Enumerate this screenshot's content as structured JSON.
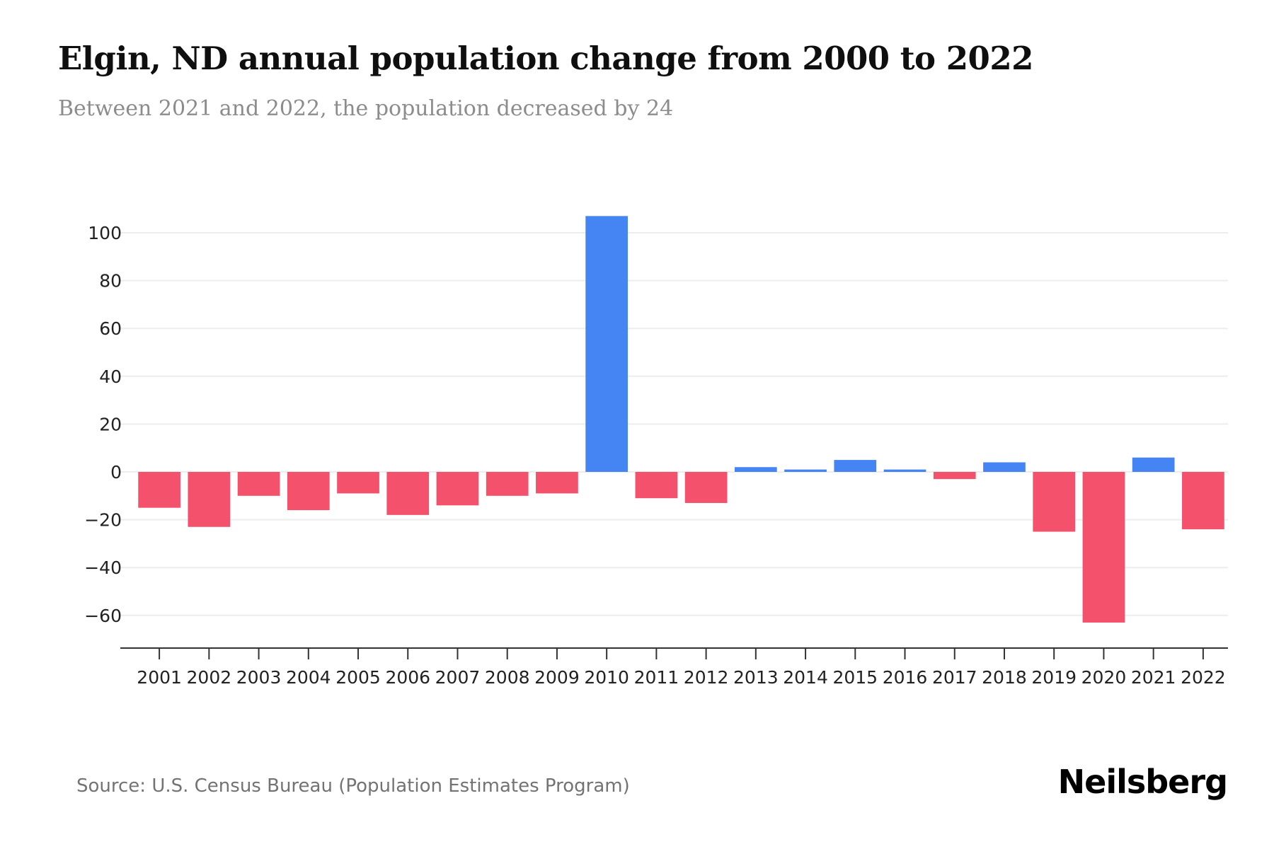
{
  "header": {},
  "chart_data": {
    "type": "bar",
    "title": "Elgin, ND annual population change from 2000 to 2022",
    "subtitle": "Between 2021 and 2022, the population decreased by 24",
    "categories": [
      "2001",
      "2002",
      "2003",
      "2004",
      "2005",
      "2006",
      "2007",
      "2008",
      "2009",
      "2010",
      "2011",
      "2012",
      "2013",
      "2014",
      "2015",
      "2016",
      "2017",
      "2018",
      "2019",
      "2020",
      "2021",
      "2022"
    ],
    "values": [
      -15,
      -23,
      -10,
      -16,
      -9,
      -18,
      -14,
      -10,
      -9,
      107,
      -11,
      -13,
      2,
      1,
      5,
      1,
      -3,
      4,
      -25,
      -63,
      6,
      -24
    ],
    "yticks": [
      -60,
      -40,
      -20,
      0,
      20,
      40,
      60,
      80,
      100
    ],
    "ylim": [
      -74,
      110
    ],
    "xlabel": "",
    "ylabel": "",
    "grid": true,
    "legend": false,
    "colors": {
      "positive": "#4484f3",
      "negative": "#f4516c",
      "gridline": "#ededed",
      "axis": "#333333"
    }
  },
  "footer": {
    "source": "Source: U.S. Census Bureau (Population Estimates Program)",
    "logo": "Neilsberg"
  }
}
